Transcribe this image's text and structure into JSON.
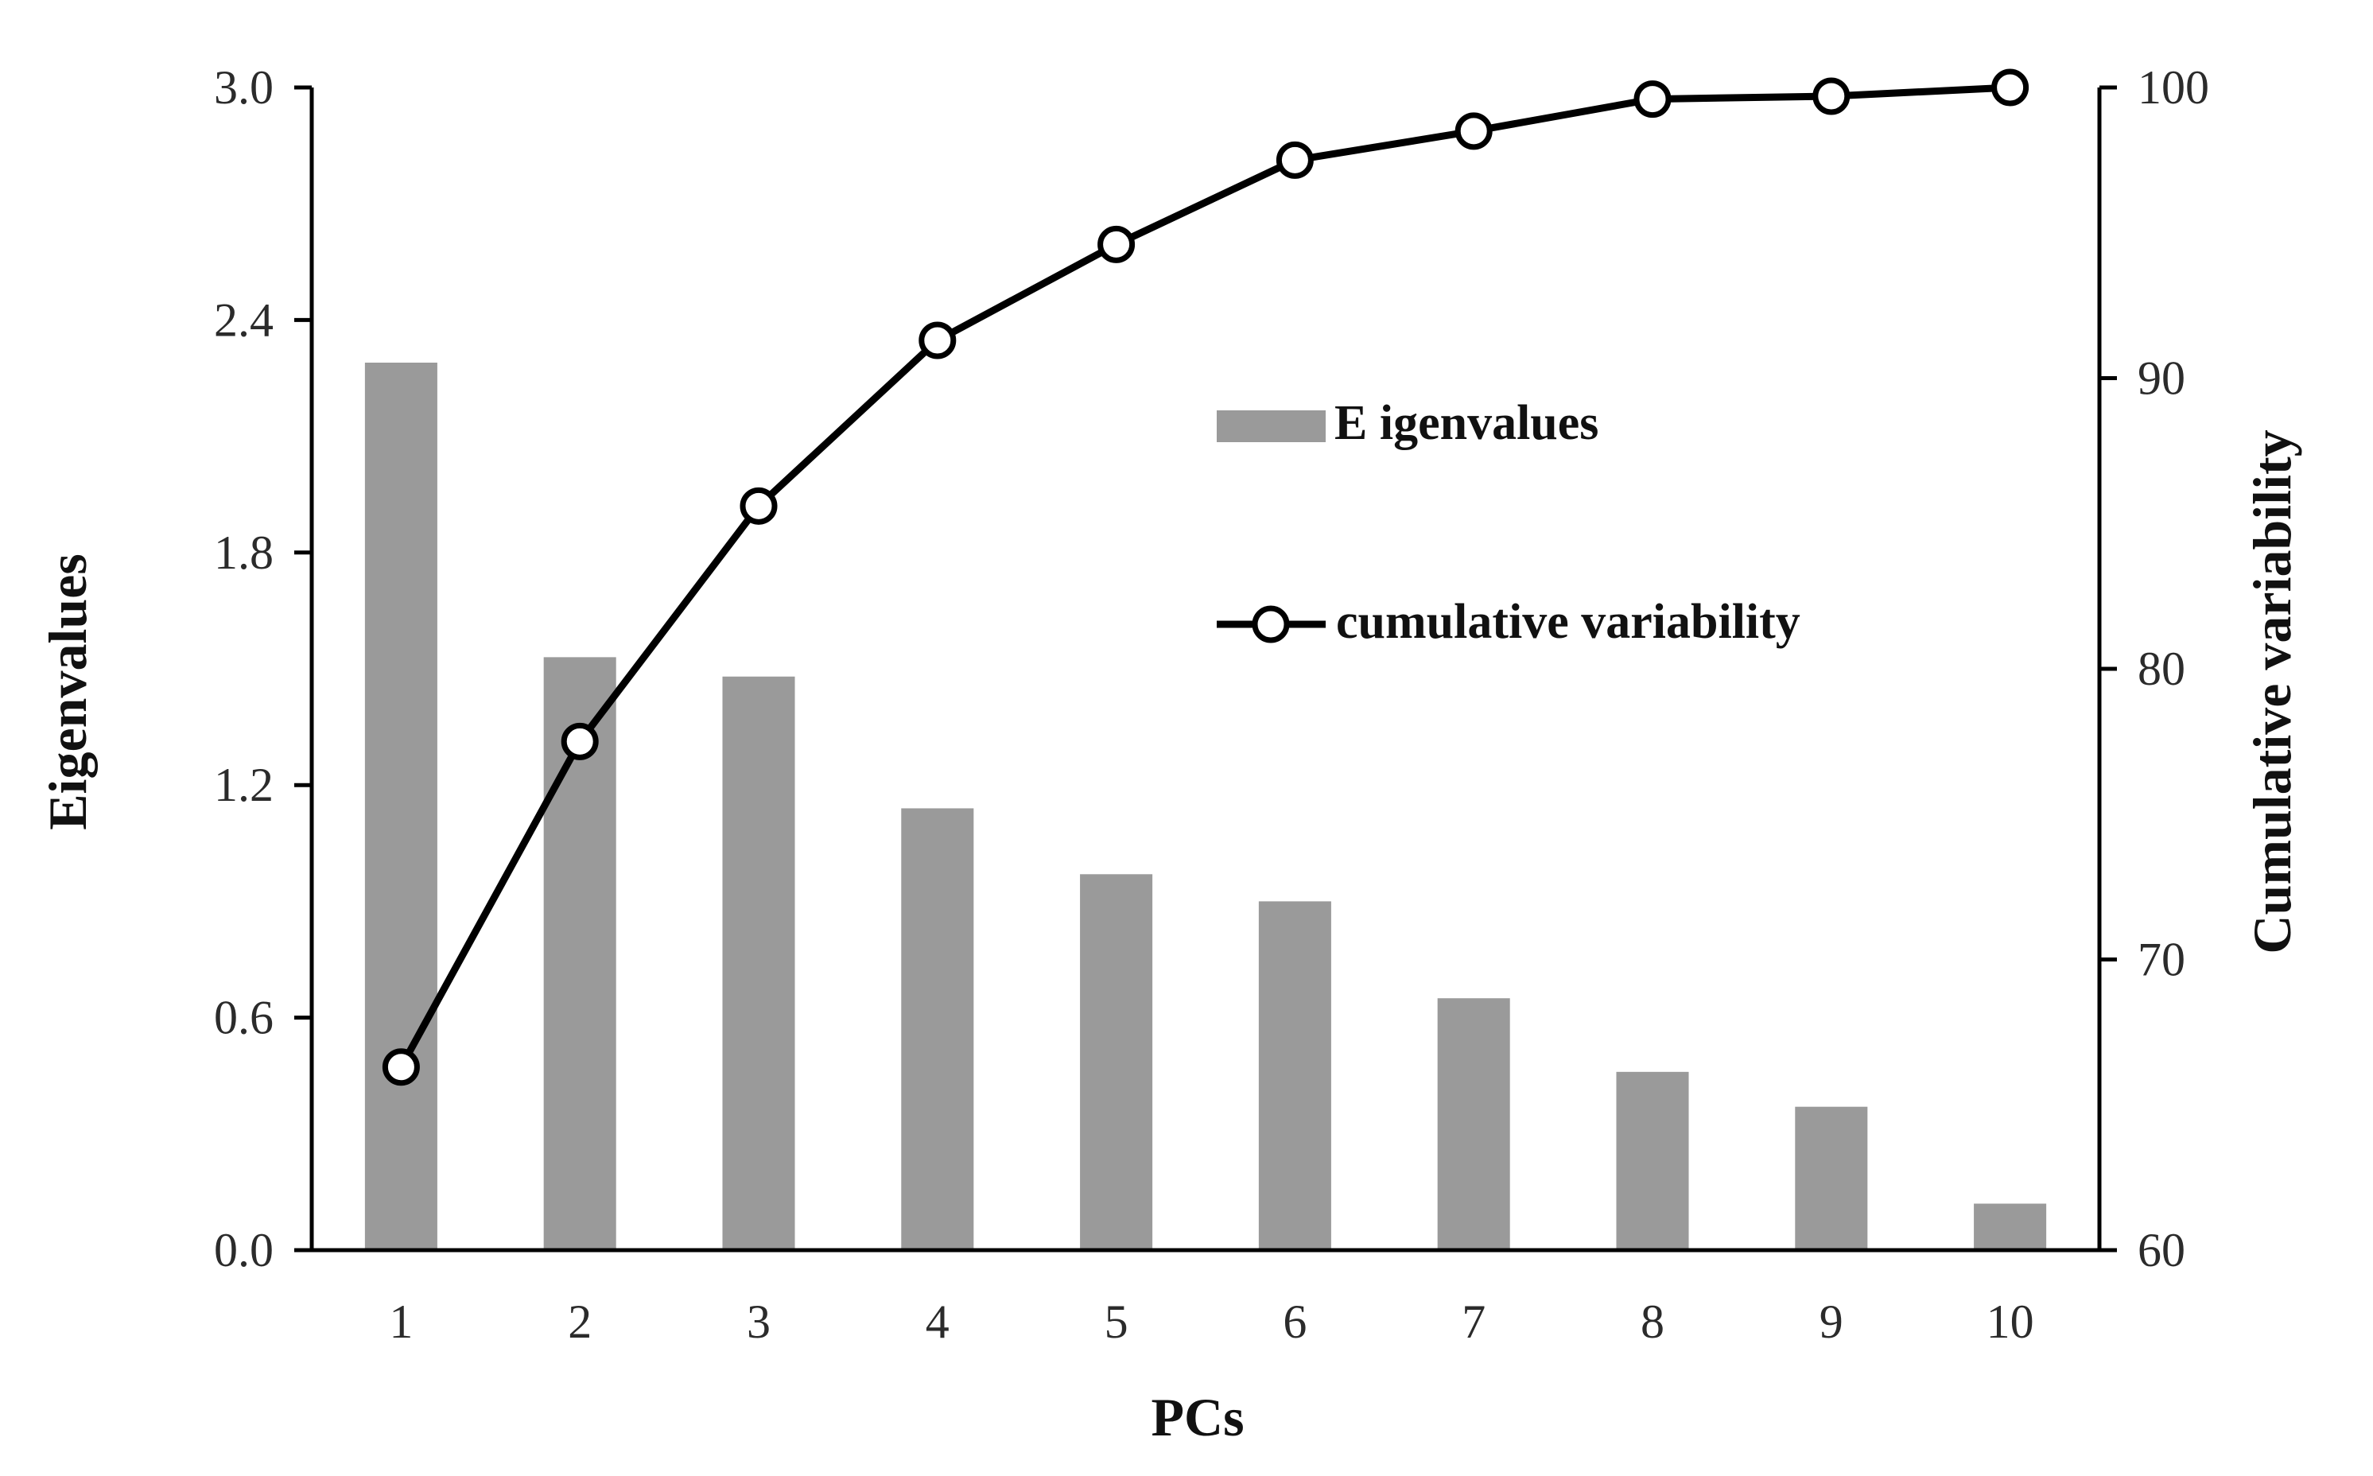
{
  "chart_data": {
    "type": "bar+line",
    "categories": [
      "1",
      "2",
      "3",
      "4",
      "5",
      "6",
      "7",
      "8",
      "9",
      "10"
    ],
    "series": [
      {
        "name": "Eigenvalues",
        "type": "bar",
        "axis": "left",
        "values": [
          2.29,
          1.53,
          1.48,
          1.14,
          0.97,
          0.9,
          0.65,
          0.46,
          0.37,
          0.12
        ]
      },
      {
        "name": "cumulative variability",
        "type": "line",
        "axis": "right",
        "marker": "open-circle",
        "values": [
          66.3,
          77.5,
          85.6,
          91.3,
          94.6,
          97.5,
          98.5,
          99.6,
          99.7,
          100.0
        ]
      }
    ],
    "xlabel": "PCs",
    "ylabel_left": "Eigenvalues",
    "ylabel_right": "Cumulative variability",
    "ylim_left": [
      0,
      3.0
    ],
    "ylim_right": [
      60,
      100
    ],
    "yticks_left": [
      "0.0",
      "0.6",
      "1.2",
      "1.8",
      "2.4",
      "3.0"
    ],
    "yticks_right": [
      "60",
      "70",
      "80",
      "90",
      "100"
    ],
    "grid": false,
    "legend_position": "upper-center",
    "legend": [
      {
        "label": "E igenvalues",
        "symbol": "bar"
      },
      {
        "label": "cumulative variability",
        "symbol": "line-circle"
      }
    ],
    "colors": {
      "bar": "#9a9a9a",
      "line": "#000000",
      "axis": "#000000",
      "text": "#2b2b2b"
    }
  }
}
